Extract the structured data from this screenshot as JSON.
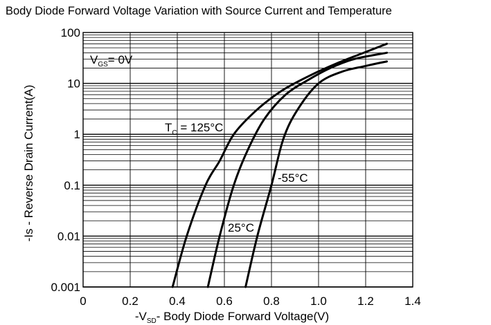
{
  "chart_data": {
    "type": "line",
    "title": "Body Diode Forward Voltage Variation with Source Current and Temperature",
    "xlabel": {
      "prefix": "-V",
      "sub": "SD",
      "suffix": "- Body Diode Forward Voltage(V)"
    },
    "ylabel": "-Is - Reverse Drain Current(A)",
    "xlim": [
      0,
      1.4
    ],
    "ylim": [
      0.001,
      100
    ],
    "yscale": "log",
    "grid": true,
    "x_tick_labels": [
      "0",
      "0.2",
      "0.4",
      "0.6",
      "0.8",
      "1.0",
      "1.2",
      "1.4"
    ],
    "y_tick_labels": [
      "0.001",
      "0.01",
      "0.1",
      "1",
      "10",
      "100"
    ],
    "annotations": {
      "vgs": {
        "prefix": "V",
        "sub": "GS",
        "suffix": "= 0V"
      },
      "tc": {
        "prefix": "T",
        "sub": "C",
        "suffix": " = 125°C"
      },
      "t25": "25°C",
      "tm55": "-55°C"
    },
    "series": [
      {
        "name": "T_C = 125°C",
        "x": [
          0.38,
          0.44,
          0.52,
          0.58,
          0.64,
          0.73,
          0.84,
          0.96,
          1.08,
          1.18,
          1.29
        ],
        "y": [
          0.001,
          0.01,
          0.1,
          0.3,
          1,
          2.8,
          7,
          14,
          25,
          38,
          60
        ]
      },
      {
        "name": "25°C",
        "x": [
          0.53,
          0.58,
          0.64,
          0.7,
          0.77,
          0.86,
          0.96,
          1.05,
          1.15,
          1.29
        ],
        "y": [
          0.001,
          0.01,
          0.1,
          0.5,
          2,
          6,
          12,
          20,
          30,
          40
        ]
      },
      {
        "name": "-55°C",
        "x": [
          0.69,
          0.74,
          0.8,
          0.85,
          0.91,
          1.0,
          1.1,
          1.2,
          1.29
        ],
        "y": [
          0.001,
          0.01,
          0.1,
          0.8,
          3,
          10,
          17,
          22,
          27
        ]
      }
    ]
  }
}
